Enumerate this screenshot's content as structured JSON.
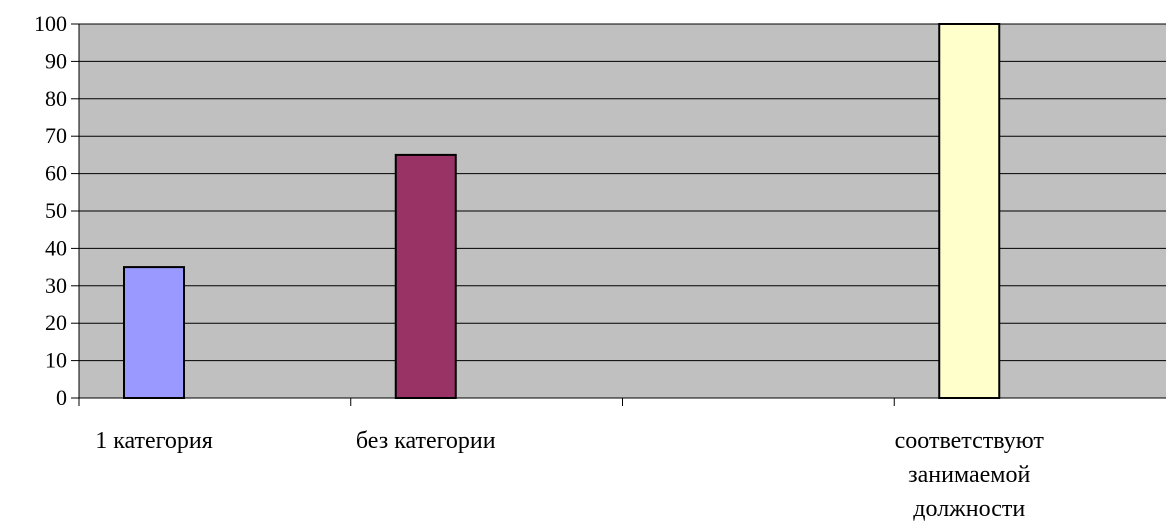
{
  "chart_data": {
    "type": "bar",
    "title": "",
    "xlabel": "",
    "ylabel": "",
    "ylim": [
      0,
      100
    ],
    "yticks": [
      0,
      10,
      20,
      30,
      40,
      50,
      60,
      70,
      80,
      90,
      100
    ],
    "grid": true,
    "legend": "none",
    "plot_background": "#c0c0c0",
    "gridline_color": "#000000",
    "bar_outline_color": "#000000",
    "categories": [
      "1 категория",
      "без категории",
      "",
      "соответствуют занимаемой должности"
    ],
    "category_label_lines": [
      [
        "1 категория"
      ],
      [
        "без категории"
      ],
      [],
      [
        "соответствуют",
        "занимаемой",
        "должности"
      ]
    ],
    "bars": [
      {
        "category": "1 категория",
        "value": 35,
        "color": "#9999ff"
      },
      {
        "category": "без категории",
        "value": 65,
        "color": "#993366"
      },
      {
        "category": "соответствуют занимаемой должности",
        "value": 100,
        "color": "#ffffcc"
      }
    ]
  }
}
